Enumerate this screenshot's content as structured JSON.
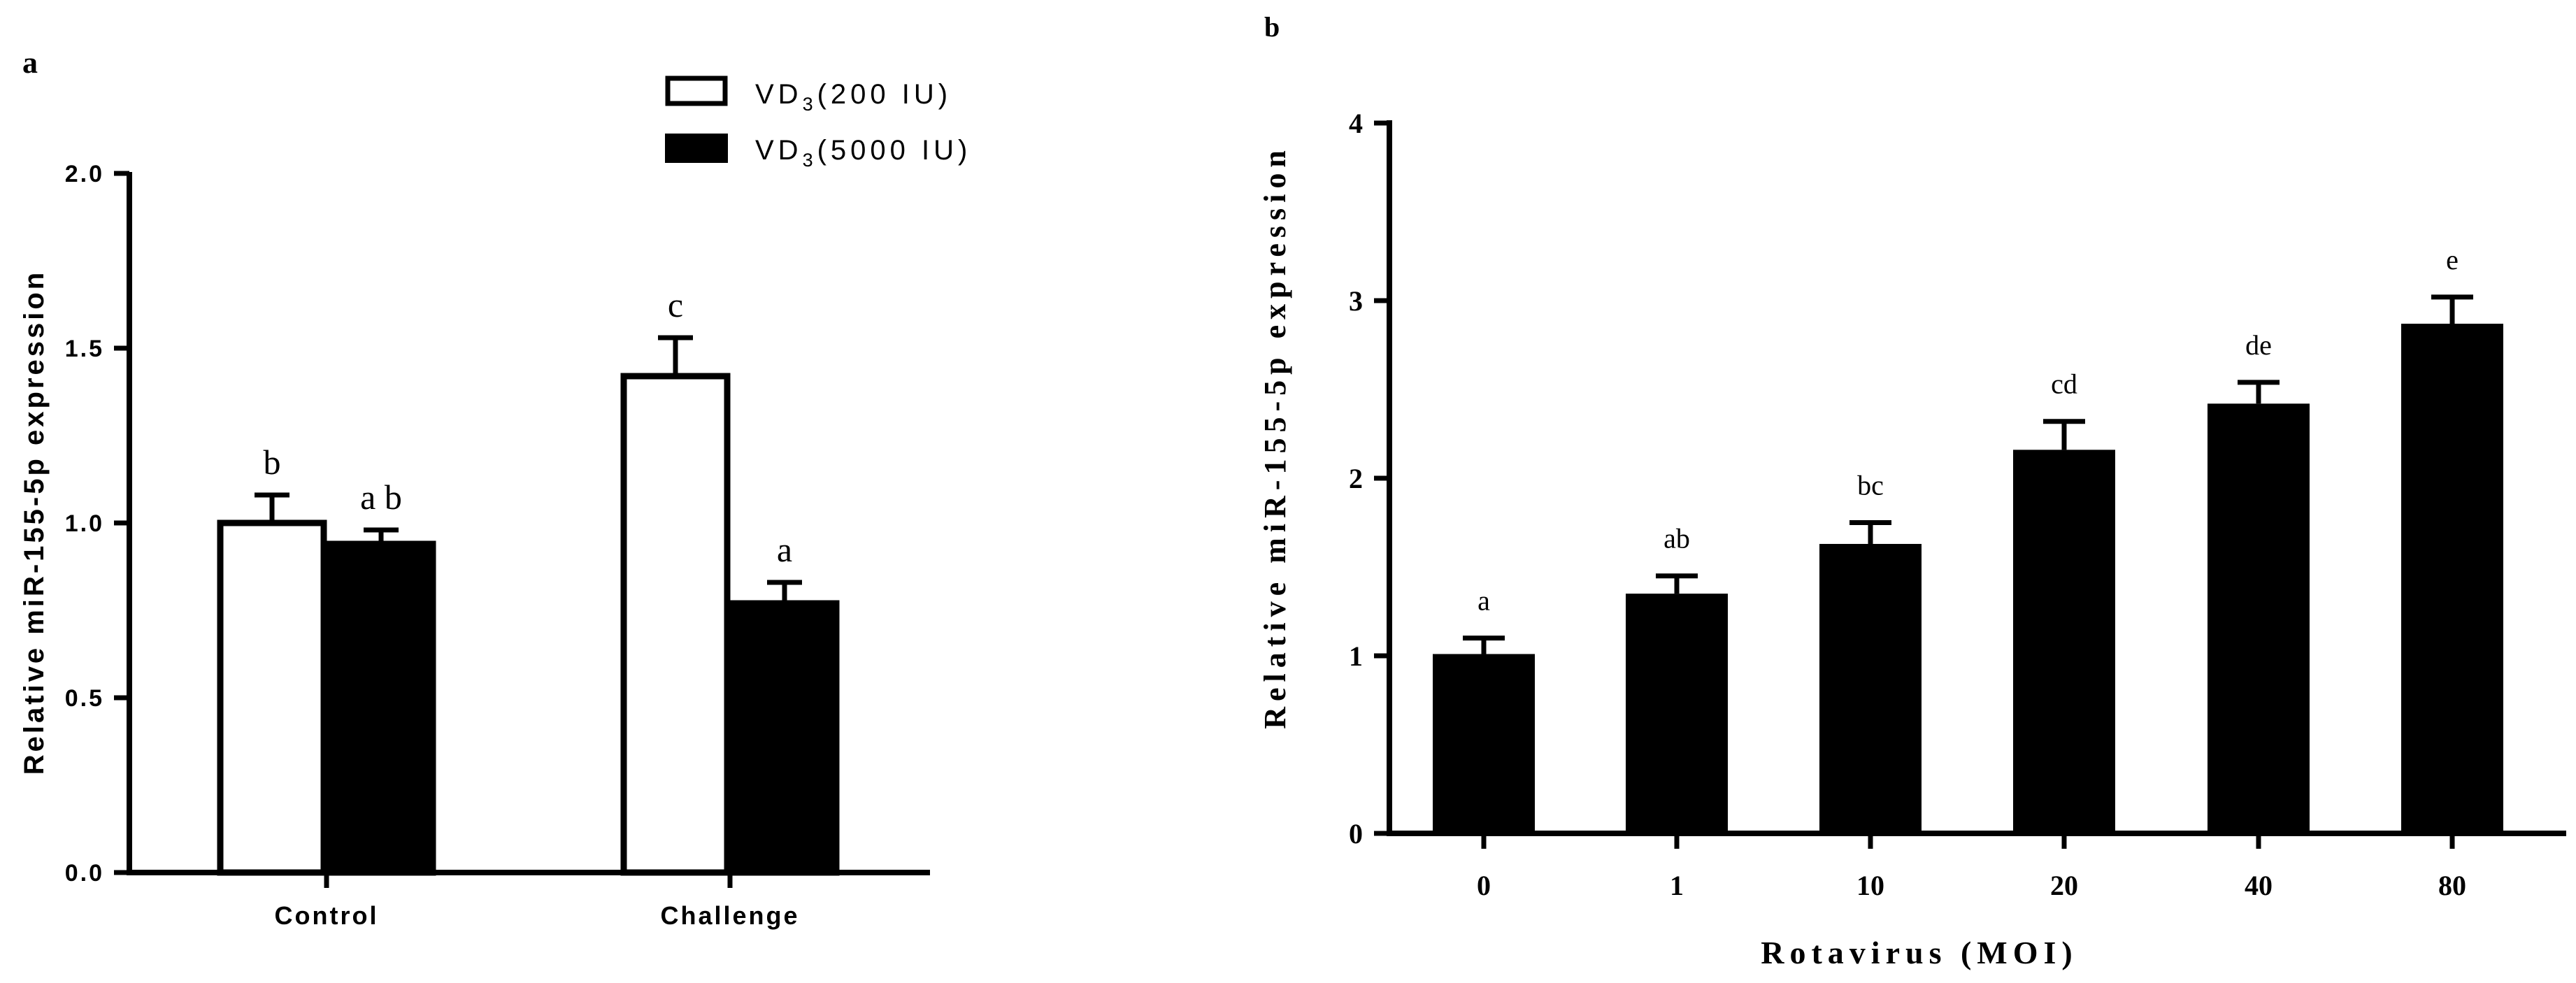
{
  "chart_data": [
    {
      "panel": "a",
      "type": "bar",
      "categories": [
        "Control",
        "Challenge"
      ],
      "series": [
        {
          "name": "VD3(200 IU)",
          "name_main": "VD",
          "name_sub": "3",
          "name_rest": "(200 IU)",
          "fill": "#ffffff",
          "values": [
            1.0,
            1.42
          ],
          "errors": [
            0.08,
            0.11
          ],
          "significance": [
            "b",
            "c"
          ]
        },
        {
          "name": "VD3(5000 IU)",
          "name_main": "VD",
          "name_sub": "3",
          "name_rest": "(5000 IU)",
          "fill": "#000000",
          "values": [
            0.94,
            0.77
          ],
          "errors": [
            0.04,
            0.06
          ],
          "significance": [
            "a b",
            "a"
          ]
        }
      ],
      "xlabel": "",
      "ylabel": "Relative miR-155-5p expression",
      "ylim": [
        0,
        2.0
      ],
      "yticks": [
        0,
        0.5,
        1.0,
        1.5,
        2.0
      ],
      "ytick_labels": [
        "0.0",
        "0.5",
        "1.0",
        "1.5",
        "2.0"
      ],
      "grid": false,
      "legend": "top-right"
    },
    {
      "panel": "b",
      "type": "bar",
      "categories": [
        "0",
        "1",
        "10",
        "20",
        "40",
        "80"
      ],
      "series": [
        {
          "fill": "#000000",
          "values": [
            1.01,
            1.35,
            1.63,
            2.16,
            2.42,
            2.87
          ],
          "errors": [
            0.09,
            0.1,
            0.12,
            0.16,
            0.12,
            0.15
          ],
          "significance": [
            "a",
            "ab",
            "bc",
            "cd",
            "de",
            "e"
          ]
        }
      ],
      "xlabel": "Rotavirus (MOI)",
      "ylabel": "Relative miR-155-5p expression",
      "ylim": [
        0,
        4
      ],
      "yticks": [
        0,
        1,
        2,
        3,
        4
      ],
      "ytick_labels": [
        "0",
        "1",
        "2",
        "3",
        "4"
      ],
      "grid": false,
      "legend": "none"
    }
  ]
}
